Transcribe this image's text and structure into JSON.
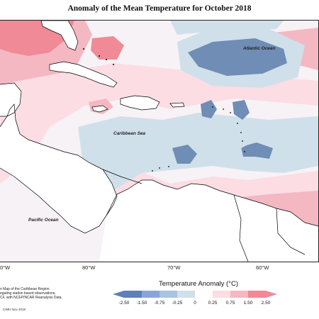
{
  "title": "Anomaly of the Mean Temperature for October 2018",
  "map_labels": {
    "atlantic": "Atlantic Ocean",
    "caribbean": "Caribbean Sea",
    "pacific": "Pacific Ocean"
  },
  "longitude_ticks": [
    "0°W",
    "80°W",
    "70°W",
    "60°W"
  ],
  "source_note": [
    "n Map of the Caribbean Region",
    "egating station based observations,",
    "CF, with NCEP/NCAR Reanalysis Data."
  ],
  "credit": "CIMH Nov 2018",
  "legend": {
    "title": "Temperature Anomaly (°C)",
    "ticks": [
      "-2.50",
      "-1.50",
      "-0.75",
      "-0.25",
      "0",
      "0.25",
      "0.75",
      "1.50",
      "2.50"
    ],
    "colors": [
      "#5f7fb8",
      "#8aa4d8",
      "#a9c3e0",
      "#cfe0ea",
      "#ffffff",
      "#fbdde3",
      "#f4b8c2",
      "#f08a96"
    ]
  },
  "colors": {
    "warm_light": "#fbdde3",
    "warm_mid": "#f4b8c2",
    "warm_strong": "#f08a96",
    "cool_light": "#cfe0ea",
    "cool_mid": "#a9c3e0",
    "cool_strong": "#6f8db5",
    "land": "#ffffff",
    "coast": "#000000"
  }
}
